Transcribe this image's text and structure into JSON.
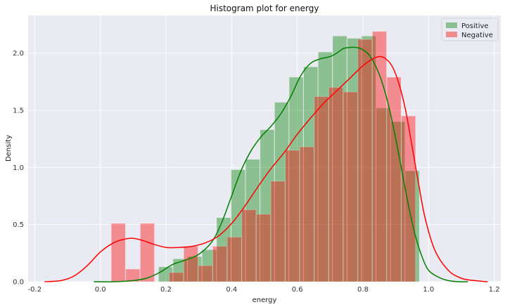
{
  "chart_data": {
    "type": "histogram",
    "title": "Histogram plot for energy",
    "xlabel": "energy",
    "ylabel": "Density",
    "xlim": [
      -0.22,
      1.22
    ],
    "ylim": [
      0,
      2.33
    ],
    "xticks": [
      "-0.2",
      "0.0",
      "0.2",
      "0.4",
      "0.6",
      "0.8",
      "1.0",
      "1.2"
    ],
    "xtick_values": [
      -0.2,
      0.0,
      0.2,
      0.4,
      0.6,
      0.8,
      1.0,
      1.2
    ],
    "yticks": [
      "0.0",
      "0.5",
      "1.0",
      "1.5",
      "2.0"
    ],
    "ytick_values": [
      0.0,
      0.5,
      1.0,
      1.5,
      2.0
    ],
    "grid": true,
    "legend_position": "top-right",
    "background": "#eaeaf2",
    "series": [
      {
        "name": "Positive",
        "color": "#008000",
        "bin_width": 0.0442,
        "bin_starts": [
          0.1775,
          0.2217,
          0.2659,
          0.3101,
          0.3543,
          0.3985,
          0.4427,
          0.4869,
          0.5311,
          0.5753,
          0.6195,
          0.6637,
          0.7079,
          0.7521,
          0.7963,
          0.8405,
          0.8847,
          0.9289
        ],
        "values": [
          0.13,
          0.2,
          0.22,
          0.28,
          0.56,
          0.98,
          1.07,
          1.33,
          1.57,
          1.79,
          1.88,
          2.01,
          2.15,
          2.13,
          2.15,
          1.52,
          1.4,
          0.97
        ],
        "kde_x": [
          -0.02,
          0.04,
          0.1,
          0.14,
          0.18,
          0.22,
          0.26,
          0.3,
          0.34,
          0.37,
          0.4,
          0.43,
          0.46,
          0.49,
          0.52,
          0.55,
          0.58,
          0.61,
          0.64,
          0.67,
          0.7,
          0.72,
          0.74,
          0.76,
          0.78,
          0.8,
          0.82,
          0.84,
          0.86,
          0.88,
          0.9,
          0.92,
          0.94,
          0.96,
          0.98,
          1.0,
          1.03,
          1.06,
          1.09,
          1.12
        ],
        "kde_y": [
          0.0,
          0.0,
          0.01,
          0.03,
          0.08,
          0.15,
          0.19,
          0.24,
          0.35,
          0.52,
          0.75,
          0.98,
          1.15,
          1.27,
          1.36,
          1.47,
          1.62,
          1.8,
          1.91,
          1.95,
          1.97,
          2.0,
          2.04,
          2.05,
          2.05,
          2.03,
          1.98,
          1.88,
          1.73,
          1.52,
          1.25,
          0.95,
          0.65,
          0.4,
          0.22,
          0.1,
          0.04,
          0.01,
          0.0,
          0.0
        ]
      },
      {
        "name": "Negative",
        "color": "#ff0000",
        "bin_width": 0.0442,
        "bin_starts": [
          0.0333,
          0.0775,
          0.1217,
          0.1659,
          0.2101,
          0.2543,
          0.2985,
          0.3427,
          0.3869,
          0.4311,
          0.4753,
          0.5195,
          0.5637,
          0.6079,
          0.6521,
          0.6963,
          0.7405,
          0.7847,
          0.8289,
          0.8731,
          0.9173,
          0.9615
        ],
        "values": [
          0.51,
          0.11,
          0.51,
          0.0,
          0.08,
          0.31,
          0.14,
          0.31,
          0.39,
          0.63,
          0.59,
          0.88,
          1.15,
          1.18,
          1.62,
          1.7,
          1.66,
          2.12,
          2.19,
          1.79,
          1.45,
          0.0
        ],
        "kde_x": [
          -0.17,
          -0.12,
          -0.08,
          -0.04,
          0.0,
          0.04,
          0.07,
          0.1,
          0.13,
          0.16,
          0.2,
          0.24,
          0.28,
          0.32,
          0.36,
          0.4,
          0.44,
          0.48,
          0.52,
          0.56,
          0.6,
          0.64,
          0.68,
          0.72,
          0.76,
          0.8,
          0.83,
          0.85,
          0.87,
          0.89,
          0.91,
          0.93,
          0.95,
          0.97,
          0.99,
          1.02,
          1.06,
          1.1,
          1.14,
          1.18
        ],
        "kde_y": [
          0.0,
          0.01,
          0.05,
          0.14,
          0.26,
          0.34,
          0.37,
          0.38,
          0.36,
          0.33,
          0.3,
          0.3,
          0.31,
          0.34,
          0.4,
          0.51,
          0.66,
          0.83,
          0.99,
          1.13,
          1.29,
          1.43,
          1.56,
          1.67,
          1.78,
          1.89,
          1.95,
          1.97,
          1.95,
          1.88,
          1.73,
          1.5,
          1.18,
          0.85,
          0.55,
          0.27,
          0.1,
          0.03,
          0.01,
          0.0
        ]
      }
    ]
  }
}
